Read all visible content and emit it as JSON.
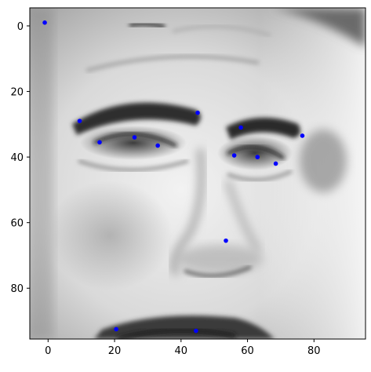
{
  "chart_data": {
    "type": "scatter",
    "title": "",
    "xlabel": "",
    "ylabel": "",
    "xlim": [
      -5.5,
      95.5
    ],
    "ylim": [
      95.5,
      -5.5
    ],
    "x_ticks": [
      0,
      20,
      40,
      60,
      80
    ],
    "y_ticks": [
      0,
      20,
      40,
      60,
      80
    ],
    "grid": false,
    "legend": "none",
    "background_image": "grayscale-face-closeup",
    "point_color": "#0000ff",
    "series": [
      {
        "x": [
          -1.0,
          9.5,
          15.5,
          26.0,
          33.0,
          45.0,
          56.0,
          58.0,
          63.0,
          68.5,
          76.5,
          53.5,
          20.5,
          44.5
        ],
        "y": [
          -1.0,
          29.0,
          35.5,
          34.0,
          36.5,
          26.5,
          39.5,
          31.0,
          40.0,
          42.0,
          33.5,
          65.5,
          92.5,
          93.0
        ]
      }
    ]
  }
}
